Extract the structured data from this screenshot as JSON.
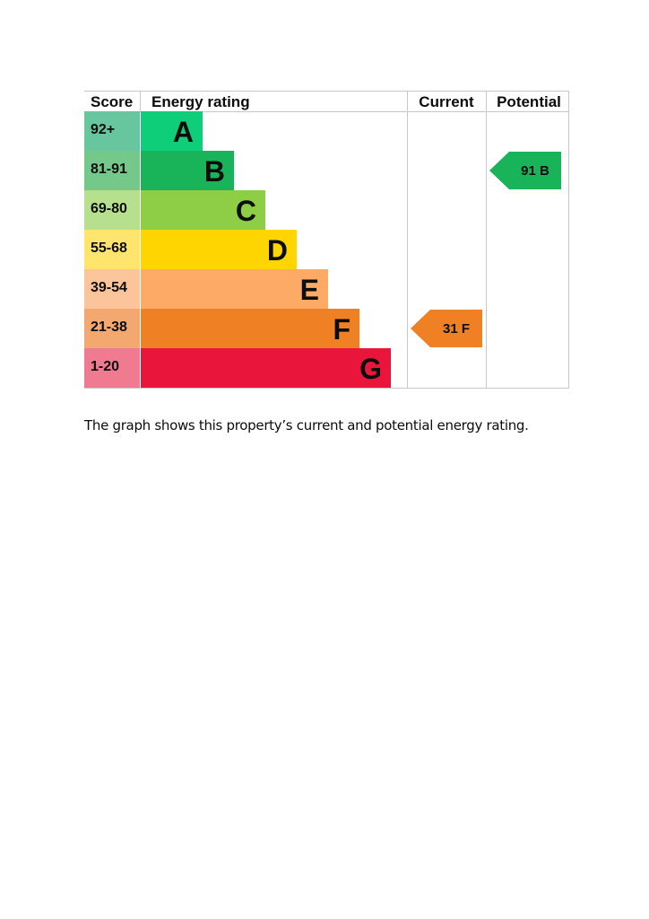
{
  "chart_data": {
    "type": "table",
    "headers": {
      "score": "Score",
      "rating": "Energy rating",
      "current": "Current",
      "potential": "Potential"
    },
    "bands": [
      {
        "score": "92+",
        "letter": "A",
        "color": "#0c8c4a",
        "tint": "#68c69e",
        "fill": "#0fce7a"
      },
      {
        "score": "81-91",
        "letter": "B",
        "color": "#19b459",
        "tint": "#74c98a",
        "fill": "#19b459"
      },
      {
        "score": "69-80",
        "letter": "C",
        "color": "#8dce46",
        "tint": "#b6e08d",
        "fill": "#8dce46"
      },
      {
        "score": "55-68",
        "letter": "D",
        "color": "#ffd500",
        "tint": "#ffe46e",
        "fill": "#ffd500"
      },
      {
        "score": "39-54",
        "letter": "E",
        "color": "#fcaa65",
        "tint": "#fbc49a",
        "fill": "#fcaa65"
      },
      {
        "score": "21-38",
        "letter": "F",
        "color": "#ef8023",
        "tint": "#f2a86f",
        "fill": "#ef8023"
      },
      {
        "score": "1-20",
        "letter": "G",
        "color": "#e9153b",
        "tint": "#f07b90",
        "fill": "#e9153b"
      }
    ],
    "current": {
      "value": 31,
      "rating": "F",
      "label": "31 F",
      "color": "#ef8023"
    },
    "potential": {
      "value": 91,
      "rating": "B",
      "label": "91 B",
      "color": "#19b459"
    }
  },
  "caption": "The graph shows this property’s current and potential energy rating."
}
